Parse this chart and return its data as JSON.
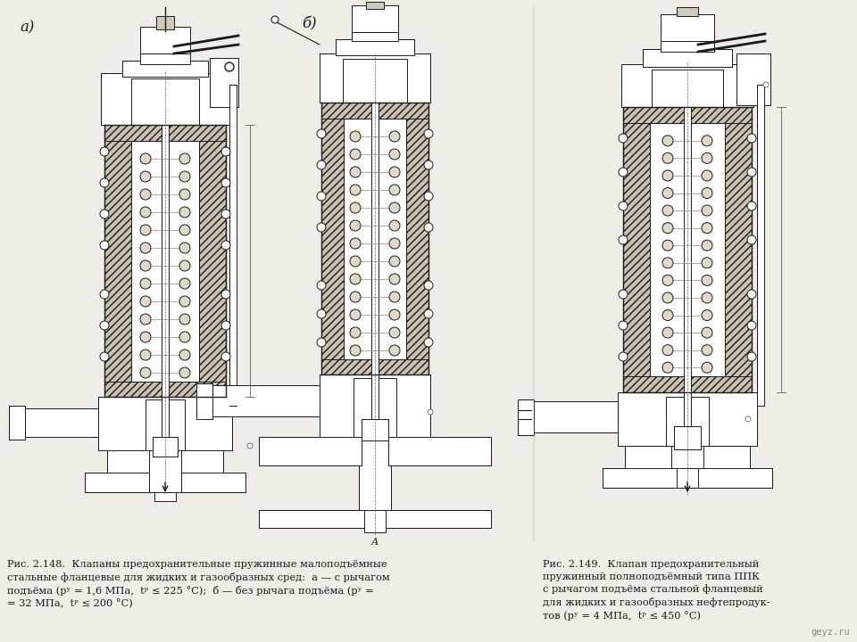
{
  "bg": "#f0ede8",
  "lc": "#1a1a1a",
  "hatch_fc": "#c8c0b0",
  "white": "#ffffff",
  "caption_left_1": "Рис. 2.148. Клапаны предохранительные пружинные малоподъёмные",
  "caption_left_2": "стальные фланцевые для жидких и газообразных сред: а — с рычагом",
  "caption_left_3": "подъёма (рʸ = 1,6 МПа, tᵖ ≤ 225 °С); б — без рычага подъёма (рʸ =",
  "caption_left_4": "= 32 МПа, tᵖ ≤ 200 °С)",
  "caption_right_1": "Рис. 2.149. Клапан предохранительный",
  "caption_right_2": "пружинный полноподъёмный типа ППК",
  "caption_right_3": "с рычагом подъёма стальной фланцевый",
  "caption_right_4": "для жидких и газообразных нефтепродук-",
  "caption_right_5": "тов (рʸ = 4 МПа, tᵖ ≤ 450 °С)",
  "label_a": "а)",
  "label_b": "б)",
  "watermark": "geyz.ru"
}
